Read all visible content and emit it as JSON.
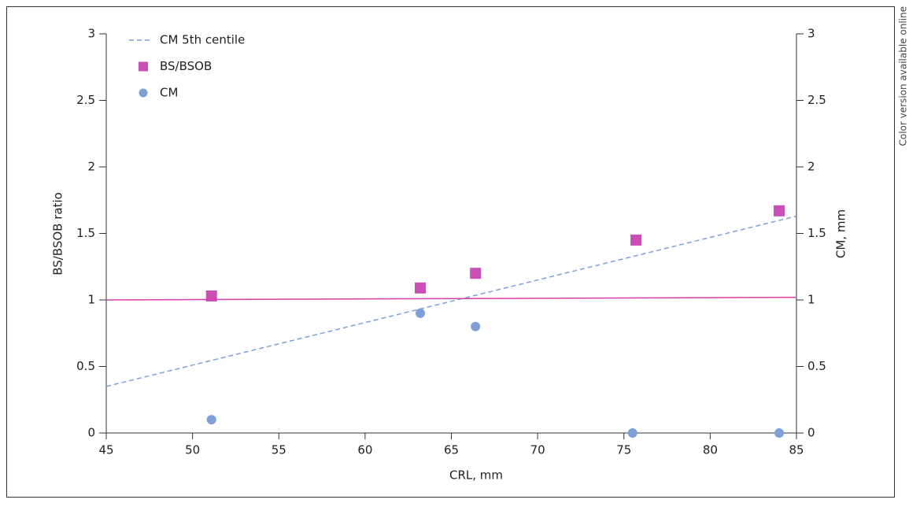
{
  "chart_data": {
    "type": "scatter",
    "x_label": "CRL, mm",
    "y_label": "BS/BSOB ratio",
    "y2_label": "CM, mm",
    "side_note": "Color version available online",
    "xlim": [
      45,
      85
    ],
    "xticks": [
      45,
      50,
      55,
      60,
      65,
      70,
      75,
      80,
      85
    ],
    "ylim": [
      0,
      3
    ],
    "yticks": [
      0,
      0.5,
      1,
      1.5,
      2,
      2.5,
      3
    ],
    "y2lim": [
      0,
      3
    ],
    "y2ticks": [
      0,
      0.5,
      1,
      1.5,
      2,
      2.5,
      3
    ],
    "legend": "upper left",
    "series": [
      {
        "name": "CM 5th centile",
        "mark": "dashed-line",
        "axis": "y2",
        "color": "#7f9fd8",
        "x": [
          45,
          85
        ],
        "values": [
          0.35,
          1.63
        ]
      },
      {
        "name": "BS/BSOB",
        "mark": "square",
        "color": "#c94fb5",
        "x": [
          51.1,
          63.2,
          66.4,
          75.7,
          84
        ],
        "values": [
          1.03,
          1.09,
          1.2,
          1.45,
          1.67
        ]
      },
      {
        "name": "CM",
        "mark": "circle",
        "axis": "y2",
        "color": "#7f9fd8",
        "x": [
          51.1,
          63.2,
          66.4,
          75.5,
          84
        ],
        "values": [
          0.1,
          0.9,
          0.8,
          0,
          0
        ]
      },
      {
        "mark": "line",
        "color": "#d63faa",
        "x": [
          45,
          85
        ],
        "values": [
          1,
          1.02
        ]
      }
    ]
  }
}
